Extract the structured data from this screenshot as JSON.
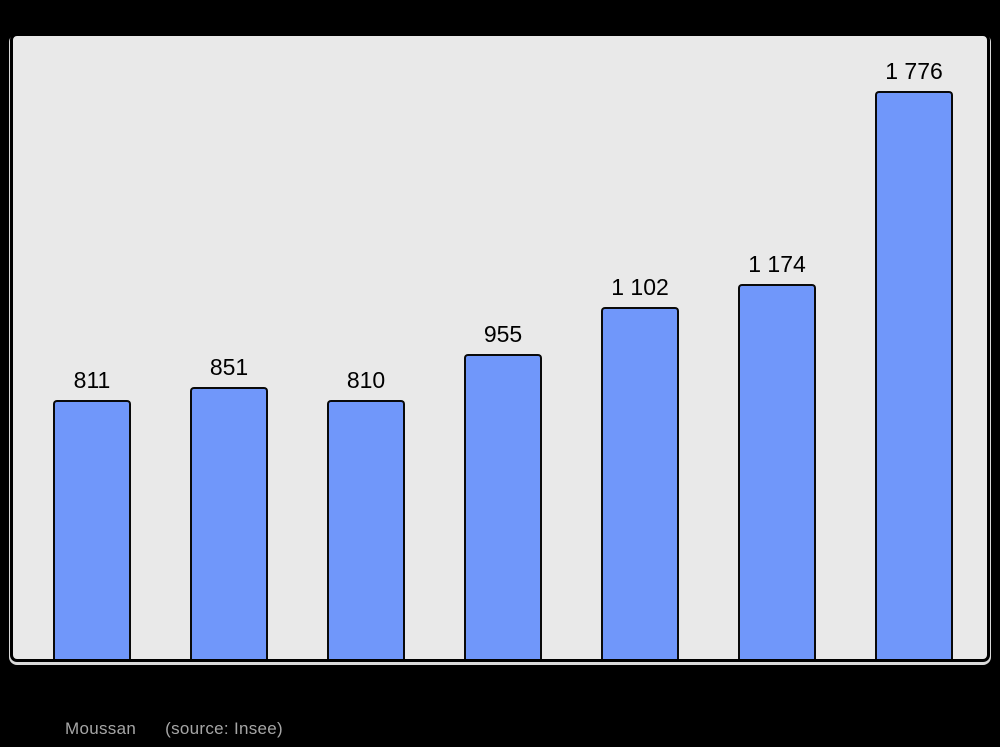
{
  "chart_data": {
    "type": "bar",
    "title": "Moussan",
    "subtitle": "(source: Insee)",
    "categories": [],
    "values": [
      811,
      851,
      810,
      955,
      1102,
      1174,
      1776
    ],
    "bar_labels": [
      "811",
      "851",
      "810",
      "955",
      "1 102",
      "1 174",
      "1 776"
    ],
    "xlabel": "",
    "ylabel": "",
    "ylim": [
      0,
      1950
    ],
    "grid": false,
    "legend": false,
    "axes_visible": false,
    "bar_color": "#7097fa",
    "bar_border_color": "#0a0a0a",
    "plot_background": "#e9e9e9",
    "page_background": "#000000",
    "value_label_color": "#000000",
    "caption_color": "#a6a6a6"
  },
  "caption": {
    "title": "Moussan",
    "source": "(source: Insee)"
  }
}
